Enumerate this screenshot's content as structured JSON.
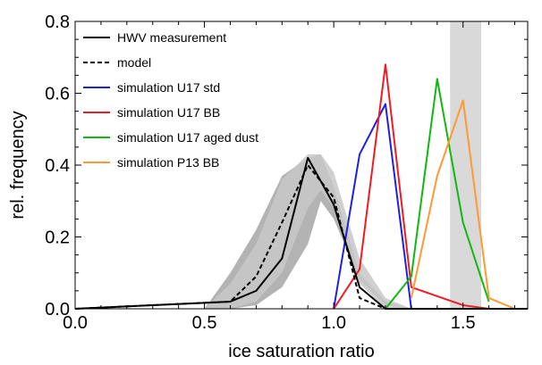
{
  "chart_data": {
    "type": "line",
    "title": "",
    "xlabel": "ice saturation ratio",
    "ylabel": "rel. frequency",
    "xlim": [
      0.0,
      1.75
    ],
    "ylim": [
      0.0,
      0.8
    ],
    "x_ticks": [
      0.0,
      0.5,
      1.0,
      1.5
    ],
    "x_tick_labels": [
      "0.0",
      "0.5",
      "1.0",
      "1.5"
    ],
    "y_ticks": [
      0.0,
      0.2,
      0.4,
      0.6,
      0.8
    ],
    "y_tick_labels": [
      "0.0",
      "0.2",
      "0.4",
      "0.6",
      "0.8"
    ],
    "grid": false,
    "legend_position": "top-left",
    "shaded_band": {
      "x_from": 1.45,
      "x_to": 1.57,
      "color": "#d9d9d9"
    },
    "uncertainty_bands": [
      {
        "color": "#a6a6a6",
        "x": [
          0.5,
          0.6,
          0.7,
          0.8,
          0.9,
          0.95,
          1.0,
          1.1,
          1.2,
          1.3
        ],
        "upper": [
          0.0,
          0.1,
          0.22,
          0.37,
          0.42,
          0.43,
          0.34,
          0.1,
          0.02,
          0.0
        ],
        "lower": [
          0.0,
          0.0,
          0.01,
          0.06,
          0.18,
          0.3,
          0.25,
          0.08,
          0.01,
          0.0
        ]
      },
      {
        "color": "#c8c8c8",
        "x": [
          0.5,
          0.6,
          0.7,
          0.8,
          0.9,
          0.95,
          1.0,
          1.1,
          1.2,
          1.3
        ],
        "upper": [
          0.0,
          0.07,
          0.18,
          0.36,
          0.43,
          0.43,
          0.38,
          0.14,
          0.03,
          0.0
        ],
        "lower": [
          0.0,
          0.0,
          0.02,
          0.1,
          0.28,
          0.33,
          0.28,
          0.07,
          0.0,
          0.0
        ]
      }
    ],
    "series": [
      {
        "name": "HWV measurement",
        "color": "#000000",
        "dash": "solid",
        "x": [
          0.0,
          0.6,
          0.7,
          0.8,
          0.9,
          1.0,
          1.1,
          1.2,
          1.3,
          1.75
        ],
        "y": [
          0.0,
          0.02,
          0.05,
          0.14,
          0.42,
          0.29,
          0.06,
          0.0,
          0.0,
          0.0
        ]
      },
      {
        "name": "model",
        "color": "#000000",
        "dash": "dashed",
        "x": [
          0.0,
          0.6,
          0.7,
          0.8,
          0.9,
          1.0,
          1.1,
          1.2,
          1.3,
          1.75
        ],
        "y": [
          0.0,
          0.02,
          0.09,
          0.24,
          0.4,
          0.31,
          0.03,
          0.0,
          0.0,
          0.0
        ]
      },
      {
        "name": "simulation U17 std",
        "color": "#1f1fe6",
        "dash": "solid",
        "x": [
          1.0,
          1.1,
          1.2,
          1.3
        ],
        "y": [
          0.0,
          0.43,
          0.57,
          0.0
        ]
      },
      {
        "name": "simulation U17 BB",
        "color": "#ee1c24",
        "dash": "solid",
        "x": [
          1.0,
          1.1,
          1.2,
          1.3,
          1.5,
          1.6
        ],
        "y": [
          0.0,
          0.11,
          0.68,
          0.06,
          0.01,
          0.0
        ]
      },
      {
        "name": "simulation U17 aged dust",
        "color": "#11b811",
        "dash": "solid",
        "x": [
          1.2,
          1.3,
          1.4,
          1.5,
          1.6
        ],
        "y": [
          0.0,
          0.09,
          0.64,
          0.24,
          0.02
        ]
      },
      {
        "name": "simulation P13 BB",
        "color": "#ff9933",
        "dash": "solid",
        "x": [
          1.3,
          1.4,
          1.5,
          1.6,
          1.7
        ],
        "y": [
          0.03,
          0.37,
          0.58,
          0.03,
          0.0
        ]
      }
    ]
  }
}
